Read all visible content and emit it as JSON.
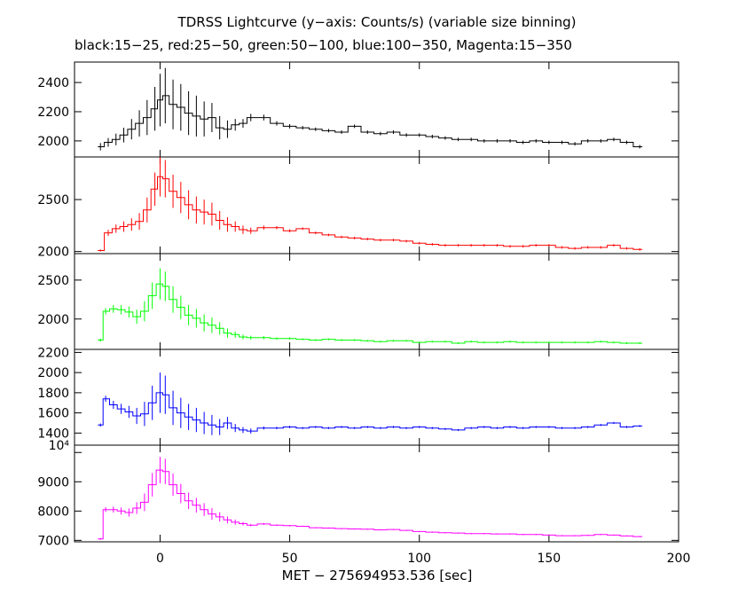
{
  "chart_data": {
    "type": "line",
    "title": "TDRSS Lightcurve (y−axis: Counts/s) (variable size binning)",
    "subtitle": "black:15−25, red:25−50, green:50−100, blue:100−350, Magenta:15−350",
    "xlabel": "MET − 275694953.536 [sec]",
    "xlim": [
      -33,
      200
    ],
    "xticks": [
      0,
      50,
      100,
      150,
      200
    ],
    "xtick_labels": [
      "0",
      "50",
      "100",
      "150",
      "200"
    ],
    "panels": [
      {
        "name": "15-25",
        "color": "#000000",
        "ylim": [
          1890,
          2540
        ],
        "yticks": [
          2000,
          2200,
          2400
        ],
        "ytick_labels": [
          "2000",
          "2200",
          "2400"
        ],
        "exponent_label": "",
        "series": [
          {
            "x": [
              -23,
              -20,
              -17,
              -14,
              -11,
              -8,
              -5,
              -2,
              0,
              2,
              5,
              8,
              11,
              14,
              17,
              20,
              23,
              26,
              29,
              32,
              35,
              40,
              45,
              50,
              55,
              60,
              65,
              70,
              75,
              80,
              85,
              90,
              95,
              100,
              105,
              110,
              115,
              120,
              125,
              130,
              135,
              140,
              145,
              150,
              155,
              160,
              165,
              170,
              175,
              180,
              185
            ],
            "y": [
              1960,
              1990,
              2010,
              2040,
              2080,
              2120,
              2160,
              2220,
              2280,
              2310,
              2250,
              2230,
              2190,
              2170,
              2150,
              2160,
              2090,
              2080,
              2110,
              2120,
              2160,
              2160,
              2120,
              2100,
              2090,
              2080,
              2070,
              2060,
              2100,
              2060,
              2050,
              2060,
              2040,
              2040,
              2030,
              2020,
              2010,
              2010,
              2000,
              2000,
              2000,
              1990,
              2000,
              1990,
              1990,
              1980,
              2000,
              2000,
              2010,
              1990,
              1960
            ],
            "err": [
              25,
              30,
              40,
              50,
              70,
              90,
              120,
              150,
              180,
              190,
              170,
              160,
              150,
              140,
              120,
              100,
              80,
              60,
              40,
              30,
              25,
              20,
              15,
              15,
              12,
              12,
              12,
              12,
              12,
              12,
              12,
              12,
              12,
              12,
              12,
              12,
              12,
              12,
              12,
              12,
              12,
              12,
              12,
              12,
              12,
              12,
              12,
              12,
              12,
              12,
              12
            ]
          }
        ]
      },
      {
        "name": "25-50",
        "color": "#ff0000",
        "ylim": [
          1980,
          2910
        ],
        "yticks": [
          2000,
          2500
        ],
        "ytick_labels": [
          "2000",
          "2500"
        ],
        "exponent_label": "",
        "series": [
          {
            "x": [
              -23,
              -20,
              -17,
              -14,
              -11,
              -8,
              -5,
              -2,
              0,
              2,
              5,
              8,
              11,
              14,
              17,
              20,
              23,
              26,
              29,
              32,
              35,
              40,
              45,
              50,
              55,
              60,
              65,
              70,
              75,
              80,
              85,
              90,
              95,
              100,
              105,
              110,
              115,
              120,
              125,
              130,
              135,
              140,
              145,
              150,
              155,
              160,
              165,
              170,
              175,
              180,
              185
            ],
            "y": [
              2010,
              2180,
              2220,
              2240,
              2260,
              2290,
              2400,
              2600,
              2720,
              2700,
              2580,
              2520,
              2450,
              2400,
              2380,
              2360,
              2300,
              2260,
              2240,
              2210,
              2200,
              2230,
              2230,
              2200,
              2220,
              2180,
              2160,
              2140,
              2130,
              2120,
              2110,
              2110,
              2100,
              2080,
              2070,
              2060,
              2060,
              2060,
              2060,
              2060,
              2050,
              2050,
              2060,
              2060,
              2040,
              2030,
              2040,
              2040,
              2060,
              2030,
              2020
            ],
            "err": [
              10,
              30,
              40,
              50,
              60,
              80,
              120,
              160,
              190,
              180,
              160,
              150,
              140,
              130,
              120,
              110,
              90,
              70,
              50,
              40,
              30,
              20,
              15,
              15,
              12,
              12,
              12,
              12,
              12,
              12,
              12,
              12,
              12,
              12,
              12,
              12,
              12,
              12,
              12,
              12,
              12,
              12,
              12,
              12,
              12,
              12,
              12,
              12,
              12,
              12,
              12
            ]
          }
        ]
      },
      {
        "name": "50-100",
        "color": "#00ff00",
        "ylim": [
          1610,
          2840
        ],
        "yticks": [
          2000,
          2500
        ],
        "ytick_labels": [
          "2000",
          "2500"
        ],
        "exponent_label": "",
        "series": [
          {
            "x": [
              -23,
              -21,
              -18,
              -15,
              -12,
              -9,
              -6,
              -3,
              0,
              2,
              5,
              8,
              11,
              14,
              17,
              20,
              23,
              26,
              29,
              32,
              35,
              40,
              45,
              50,
              55,
              60,
              65,
              70,
              75,
              80,
              85,
              90,
              95,
              100,
              105,
              110,
              115,
              120,
              125,
              130,
              135,
              140,
              145,
              150,
              155,
              160,
              165,
              170,
              175,
              180,
              185
            ],
            "y": [
              1730,
              2100,
              2130,
              2120,
              2090,
              2030,
              2100,
              2300,
              2450,
              2420,
              2250,
              2150,
              2050,
              2010,
              1950,
              1920,
              1880,
              1820,
              1800,
              1770,
              1760,
              1760,
              1750,
              1750,
              1740,
              1730,
              1740,
              1730,
              1730,
              1720,
              1710,
              1720,
              1720,
              1700,
              1710,
              1710,
              1690,
              1710,
              1700,
              1700,
              1710,
              1700,
              1700,
              1700,
              1700,
              1700,
              1700,
              1710,
              1700,
              1690,
              1690
            ],
            "err": [
              20,
              40,
              50,
              60,
              70,
              90,
              130,
              170,
              200,
              190,
              170,
              150,
              130,
              120,
              110,
              100,
              80,
              60,
              40,
              30,
              25,
              20,
              15,
              15,
              12,
              12,
              12,
              12,
              12,
              12,
              12,
              12,
              12,
              12,
              12,
              12,
              12,
              12,
              12,
              12,
              12,
              12,
              12,
              12,
              12,
              12,
              12,
              12,
              12,
              12,
              12
            ]
          }
        ]
      },
      {
        "name": "100-350",
        "color": "#0000ff",
        "ylim": [
          1280,
          2230
        ],
        "yticks": [
          1400,
          1600,
          1800,
          2000,
          2200
        ],
        "ytick_labels": [
          "1400",
          "1600",
          "1800",
          "2000",
          "2200"
        ],
        "exponent_label": "",
        "series": [
          {
            "x": [
              -23,
              -21,
              -18,
              -15,
              -12,
              -9,
              -6,
              -3,
              0,
              2,
              5,
              8,
              11,
              14,
              17,
              20,
              23,
              26,
              29,
              32,
              35,
              40,
              45,
              50,
              55,
              60,
              65,
              70,
              75,
              80,
              85,
              90,
              95,
              100,
              105,
              110,
              115,
              120,
              125,
              130,
              135,
              140,
              145,
              150,
              155,
              160,
              165,
              170,
              175,
              180,
              185
            ],
            "y": [
              1480,
              1740,
              1680,
              1640,
              1610,
              1570,
              1590,
              1700,
              1800,
              1780,
              1650,
              1600,
              1560,
              1530,
              1500,
              1480,
              1460,
              1500,
              1450,
              1430,
              1420,
              1450,
              1450,
              1460,
              1450,
              1460,
              1450,
              1460,
              1450,
              1460,
              1450,
              1460,
              1450,
              1460,
              1450,
              1440,
              1430,
              1450,
              1460,
              1450,
              1460,
              1450,
              1460,
              1460,
              1450,
              1450,
              1460,
              1480,
              1500,
              1460,
              1470
            ],
            "err": [
              15,
              30,
              40,
              50,
              60,
              80,
              120,
              170,
              200,
              190,
              170,
              150,
              130,
              120,
              110,
              100,
              80,
              60,
              40,
              30,
              25,
              15,
              12,
              12,
              10,
              10,
              10,
              10,
              10,
              10,
              10,
              10,
              10,
              10,
              10,
              10,
              10,
              10,
              10,
              10,
              10,
              10,
              10,
              10,
              10,
              10,
              10,
              10,
              10,
              10,
              10
            ]
          }
        ]
      },
      {
        "name": "15-350",
        "color": "#ff00ff",
        "ylim": [
          6950,
          10250
        ],
        "yticks": [
          7000,
          8000,
          9000,
          10000
        ],
        "ytick_labels": [
          "7000",
          "8000",
          "9000",
          ""
        ],
        "exponent_label": "10⁴",
        "series": [
          {
            "x": [
              -23,
              -21,
              -18,
              -15,
              -12,
              -9,
              -6,
              -3,
              0,
              2,
              5,
              8,
              11,
              14,
              17,
              20,
              23,
              26,
              29,
              32,
              35,
              40,
              45,
              50,
              55,
              60,
              65,
              70,
              75,
              80,
              85,
              90,
              95,
              100,
              105,
              110,
              115,
              120,
              125,
              130,
              135,
              140,
              145,
              150,
              155,
              160,
              165,
              170,
              175,
              180,
              185
            ],
            "y": [
              7050,
              8050,
              8050,
              8000,
              7950,
              8100,
              8300,
              8900,
              9400,
              9350,
              8900,
              8600,
              8350,
              8200,
              8050,
              7900,
              7800,
              7700,
              7620,
              7570,
              7520,
              7560,
              7520,
              7500,
              7480,
              7430,
              7420,
              7400,
              7390,
              7380,
              7360,
              7370,
              7340,
              7300,
              7280,
              7260,
              7250,
              7230,
              7230,
              7220,
              7220,
              7200,
              7200,
              7180,
              7160,
              7160,
              7170,
              7200,
              7180,
              7150,
              7130
            ],
            "err": [
              30,
              80,
              100,
              120,
              140,
              200,
              300,
              400,
              450,
              430,
              380,
              330,
              280,
              250,
              220,
              200,
              160,
              120,
              90,
              60,
              40,
              30,
              25,
              25,
              20,
              20,
              20,
              20,
              20,
              20,
              20,
              20,
              20,
              20,
              20,
              20,
              20,
              20,
              20,
              20,
              20,
              20,
              20,
              20,
              20,
              20,
              20,
              20,
              20,
              20,
              20
            ]
          }
        ]
      }
    ]
  }
}
